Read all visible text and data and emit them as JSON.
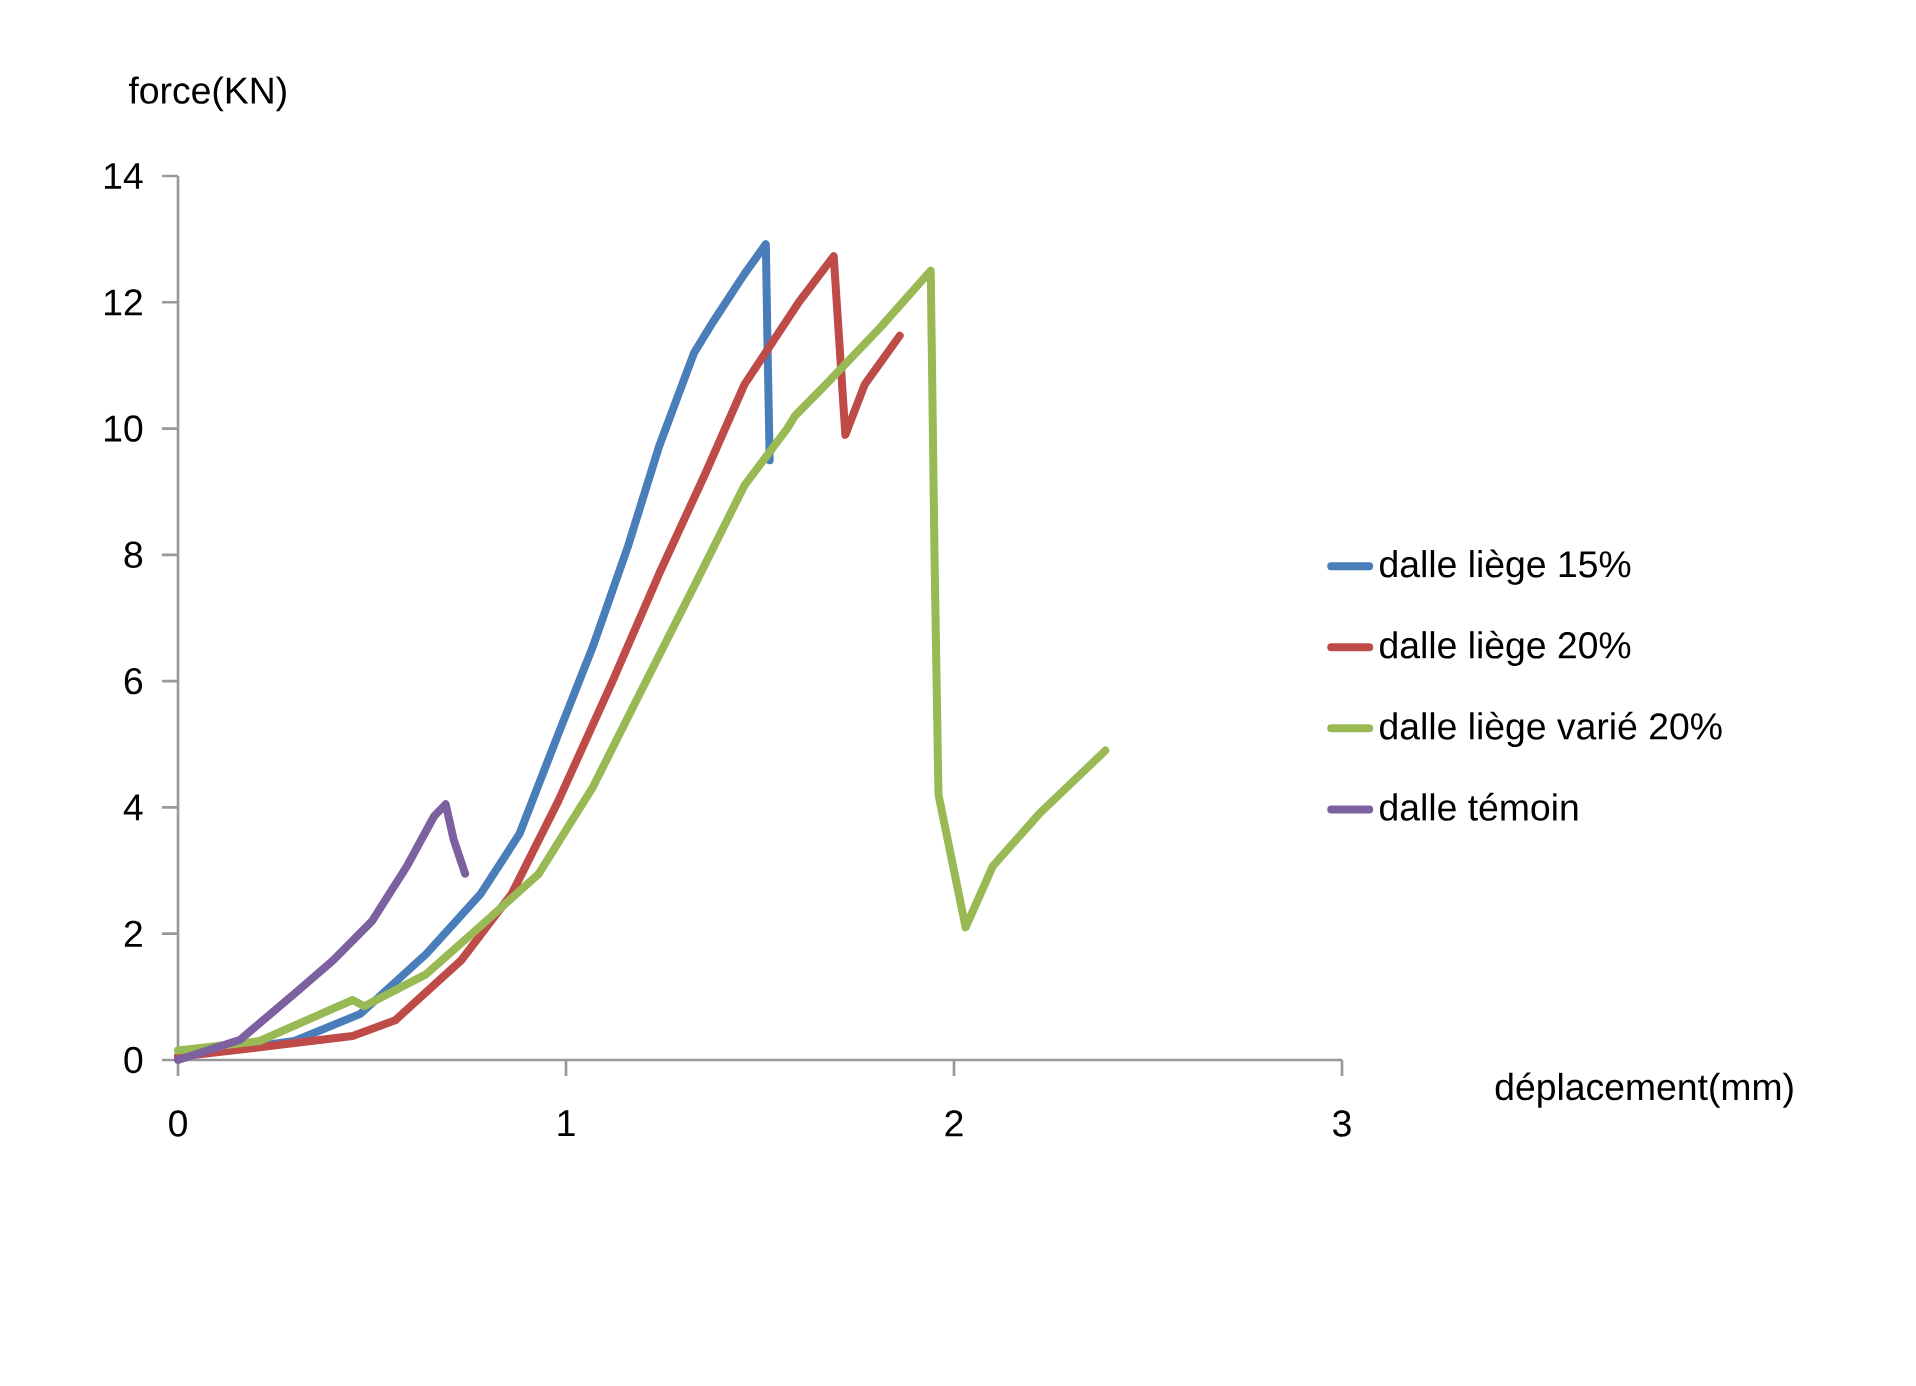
{
  "chart_data": {
    "type": "line",
    "xlabel": "déplacement(mm)",
    "ylabel": "force(KN)",
    "xlim": [
      0,
      3
    ],
    "ylim": [
      0,
      14
    ],
    "xticks": [
      0,
      1,
      2,
      3
    ],
    "yticks": [
      0,
      2,
      4,
      6,
      8,
      10,
      12,
      14
    ],
    "grid": false,
    "legend": "right",
    "marker": "none",
    "line_style": "solid",
    "series": [
      {
        "name": "dalle liège 15%",
        "color": "#4a7ebb",
        "x": [
          0,
          0.3,
          0.47,
          0.64,
          0.78,
          0.88,
          0.98,
          1.07,
          1.16,
          1.24,
          1.33,
          1.38,
          1.46,
          1.515,
          1.52,
          1.525
        ],
        "values": [
          0.05,
          0.3,
          0.73,
          1.68,
          2.63,
          3.58,
          5.16,
          6.56,
          8.14,
          9.72,
          11.2,
          11.7,
          12.45,
          12.92,
          11.1,
          9.5
        ]
      },
      {
        "name": "dalle liège 20%",
        "color": "#be4b48",
        "x": [
          0,
          0.21,
          0.45,
          0.56,
          0.73,
          0.86,
          0.98,
          1.12,
          1.24,
          1.36,
          1.46,
          1.6,
          1.69,
          1.72,
          1.77,
          1.86
        ],
        "values": [
          0.05,
          0.2,
          0.38,
          0.63,
          1.58,
          2.63,
          4.1,
          6.0,
          7.7,
          9.3,
          10.7,
          12.0,
          12.73,
          9.9,
          10.7,
          11.47
        ]
      },
      {
        "name": "dalle liège varié 20%",
        "color": "#98b954",
        "x": [
          0,
          0.21,
          0.45,
          0.48,
          0.64,
          0.78,
          0.93,
          1.07,
          1.19,
          1.33,
          1.46,
          1.57,
          1.59,
          1.67,
          1.81,
          1.94,
          1.95,
          1.96,
          2.03,
          2.1,
          2.22,
          2.39
        ],
        "values": [
          0.15,
          0.3,
          0.95,
          0.85,
          1.36,
          2.12,
          2.95,
          4.33,
          5.8,
          7.5,
          9.1,
          10.0,
          10.2,
          10.7,
          11.6,
          12.5,
          7.9,
          4.2,
          2.1,
          3.07,
          3.9,
          4.9
        ]
      },
      {
        "name": "dalle témoin",
        "color": "#7d60a0",
        "x": [
          0,
          0.16,
          0.3,
          0.4,
          0.5,
          0.59,
          0.66,
          0.69,
          0.71,
          0.74
        ],
        "values": [
          0,
          0.32,
          1.05,
          1.58,
          2.2,
          3.07,
          3.86,
          4.05,
          3.5,
          2.95
        ]
      }
    ]
  }
}
